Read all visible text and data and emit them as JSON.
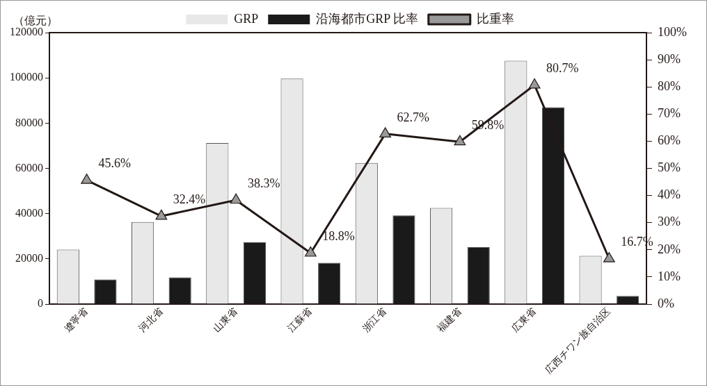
{
  "chart_data": {
    "type": "bar",
    "ylabel": "（億元）",
    "categories": [
      "遼寧省",
      "河北省",
      "山東省",
      "江蘇省",
      "浙江省",
      "福建省",
      "広東省",
      "広西チワン族自治区"
    ],
    "series": [
      {
        "name": "GRP",
        "color": "#e8e8e8",
        "values": [
          24100,
          36300,
          71200,
          99700,
          62400,
          42500,
          107600,
          21300
        ]
      },
      {
        "name": "沿海都市GRP 比率",
        "color": "#1a1a1a",
        "values": [
          10900,
          11800,
          27300,
          18300,
          39200,
          25200,
          87000,
          3600
        ]
      },
      {
        "name": "比重率",
        "type": "line",
        "axis": "y2",
        "color": "#231815",
        "marker": "triangle",
        "values": [
          45.6,
          32.4,
          38.3,
          18.8,
          62.7,
          59.8,
          80.7,
          16.7
        ],
        "value_labels": [
          "45.6%",
          "32.4%",
          "38.3%",
          "18.8%",
          "62.7%",
          "59.8%",
          "80.7%",
          "16.7%"
        ]
      }
    ],
    "ylim": [
      0,
      120000
    ],
    "yticks": [
      0,
      20000,
      40000,
      60000,
      80000,
      100000,
      120000
    ],
    "y2lim": [
      0,
      100
    ],
    "y2ticks": [
      {
        "value": 0,
        "label": "0%"
      },
      {
        "value": 10,
        "label": "10%"
      },
      {
        "value": 20,
        "label": "20%"
      },
      {
        "value": 30,
        "label": "30%"
      },
      {
        "value": 40,
        "label": "40%"
      },
      {
        "value": 50,
        "label": "50%"
      },
      {
        "value": 60,
        "label": "60%"
      },
      {
        "value": 70,
        "label": "70%"
      },
      {
        "value": 80,
        "label": "80%"
      },
      {
        "value": 90,
        "label": "90%"
      },
      {
        "value": 100,
        "label": "100%"
      }
    ],
    "grid": false,
    "legend": "top"
  }
}
